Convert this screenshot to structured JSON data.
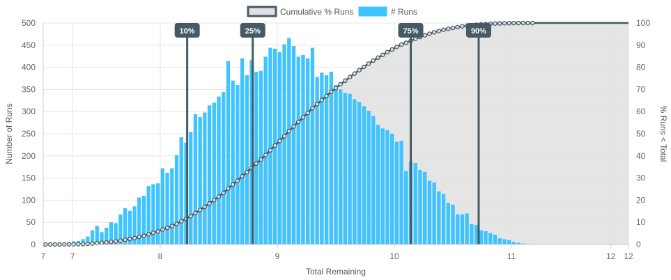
{
  "chart_data": {
    "type": "bar",
    "xlabel": "Total Remaining",
    "ylabel": "Number of Runs",
    "y2label": "% Runs < Total",
    "xlim": [
      7,
      12
    ],
    "ylim": [
      0,
      500
    ],
    "y2lim": [
      0,
      100
    ],
    "grid": true,
    "legend_position": "top-center",
    "x_ticks": [
      "7",
      "7",
      "8",
      "9",
      "10",
      "11",
      "12",
      "12"
    ],
    "y_ticks": [
      0,
      50,
      100,
      150,
      200,
      250,
      300,
      350,
      400,
      450,
      500
    ],
    "y2_ticks": [
      0,
      10,
      20,
      30,
      40,
      50,
      60,
      70,
      80,
      90,
      100
    ],
    "series": [
      {
        "name": "# Runs",
        "type": "bar",
        "color": "#40C4FF",
        "x_start": 7.0,
        "bin_width": 0.04,
        "values": [
          1,
          1,
          1,
          2,
          3,
          5,
          7,
          8,
          12,
          18,
          32,
          42,
          28,
          38,
          50,
          48,
          68,
          82,
          76,
          86,
          106,
          110,
          132,
          136,
          138,
          172,
          162,
          172,
          202,
          242,
          230,
          254,
          294,
          288,
          298,
          314,
          320,
          334,
          344,
          414,
          370,
          360,
          420,
          382,
          416,
          390,
          392,
          424,
          444,
          442,
          434,
          452,
          466,
          448,
          424,
          428,
          420,
          444,
          378,
          388,
          382,
          390,
          360,
          350,
          342,
          340,
          328,
          322,
          312,
          302,
          290,
          270,
          262,
          258,
          250,
          232,
          234,
          166,
          188,
          184,
          168,
          164,
          144,
          140,
          120,
          114,
          94,
          90,
          68,
          68,
          70,
          46,
          44,
          32,
          30,
          26,
          22,
          14,
          12,
          10,
          6,
          4,
          2,
          1,
          1
        ],
        "labels_shown": false
      },
      {
        "name": "Cumulative % Runs",
        "type": "area-line",
        "axis": "right",
        "color": "#455A64",
        "fill": "#E0E0E0"
      }
    ],
    "markers": [
      {
        "label": "10%",
        "x": 8.23
      },
      {
        "label": "25%",
        "x": 8.79
      },
      {
        "label": "75%",
        "x": 10.14
      },
      {
        "label": "90%",
        "x": 10.72
      }
    ]
  },
  "legend": {
    "cumulative_label": "Cumulative % Runs",
    "runs_label": "# Runs"
  }
}
